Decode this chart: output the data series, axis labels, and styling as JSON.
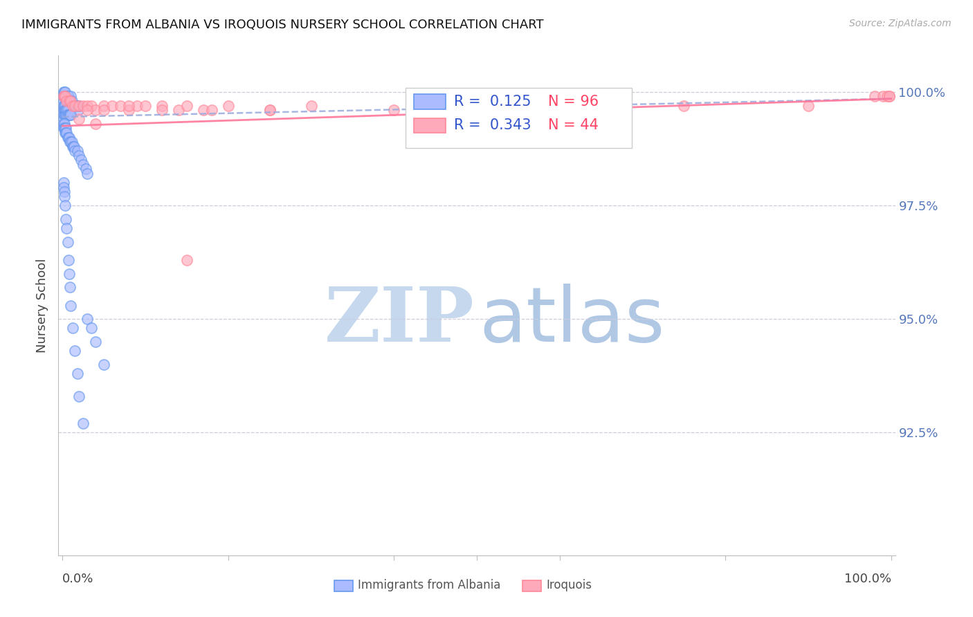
{
  "title": "IMMIGRANTS FROM ALBANIA VS IROQUOIS NURSERY SCHOOL CORRELATION CHART",
  "source": "Source: ZipAtlas.com",
  "ylabel": "Nursery School",
  "yticks": [
    0.925,
    0.95,
    0.975,
    1.0
  ],
  "ytick_labels": [
    "92.5%",
    "95.0%",
    "97.5%",
    "100.0%"
  ],
  "xlim": [
    -0.005,
    1.005
  ],
  "ylim": [
    0.898,
    1.008
  ],
  "watermark_zip_color": "#c5d8ee",
  "watermark_atlas_color": "#b0c8e4",
  "blue_color": "#6699ee",
  "pink_color": "#ff8899",
  "blue_fill_color": "#aabbff",
  "pink_fill_color": "#ffaabb",
  "blue_line_color": "#99aadd",
  "pink_line_color": "#ff7799",
  "blue_scatter_x": [
    0.001,
    0.001,
    0.001,
    0.002,
    0.002,
    0.003,
    0.003,
    0.004,
    0.004,
    0.005,
    0.005,
    0.006,
    0.006,
    0.007,
    0.007,
    0.008,
    0.008,
    0.009,
    0.01,
    0.01,
    0.011,
    0.012,
    0.013,
    0.014,
    0.015,
    0.016,
    0.017,
    0.018,
    0.019,
    0.02,
    0.001,
    0.001,
    0.001,
    0.001,
    0.002,
    0.002,
    0.002,
    0.003,
    0.003,
    0.003,
    0.004,
    0.004,
    0.005,
    0.005,
    0.006,
    0.006,
    0.007,
    0.008,
    0.009,
    0.01,
    0.001,
    0.001,
    0.002,
    0.002,
    0.003,
    0.003,
    0.004,
    0.004,
    0.005,
    0.006,
    0.007,
    0.008,
    0.009,
    0.01,
    0.011,
    0.012,
    0.013,
    0.014,
    0.015,
    0.018,
    0.02,
    0.022,
    0.025,
    0.028,
    0.03,
    0.001,
    0.001,
    0.002,
    0.002,
    0.003,
    0.004,
    0.005,
    0.006,
    0.007,
    0.008,
    0.009,
    0.01,
    0.012,
    0.015,
    0.018,
    0.02,
    0.025,
    0.03,
    0.035,
    0.04,
    0.05
  ],
  "blue_scatter_y": [
    1.0,
    0.999,
    0.998,
    1.0,
    0.999,
    1.0,
    0.999,
    0.999,
    0.998,
    0.999,
    0.998,
    0.999,
    0.998,
    0.999,
    0.998,
    0.998,
    0.997,
    0.998,
    0.999,
    0.998,
    0.998,
    0.997,
    0.997,
    0.997,
    0.997,
    0.997,
    0.997,
    0.997,
    0.996,
    0.997,
    0.997,
    0.996,
    0.995,
    0.994,
    0.997,
    0.996,
    0.995,
    0.997,
    0.996,
    0.995,
    0.996,
    0.995,
    0.996,
    0.995,
    0.996,
    0.995,
    0.995,
    0.995,
    0.995,
    0.995,
    0.993,
    0.992,
    0.993,
    0.992,
    0.992,
    0.991,
    0.992,
    0.991,
    0.991,
    0.99,
    0.99,
    0.99,
    0.989,
    0.989,
    0.989,
    0.988,
    0.988,
    0.988,
    0.987,
    0.987,
    0.986,
    0.985,
    0.984,
    0.983,
    0.982,
    0.98,
    0.979,
    0.978,
    0.977,
    0.975,
    0.972,
    0.97,
    0.967,
    0.963,
    0.96,
    0.957,
    0.953,
    0.948,
    0.943,
    0.938,
    0.933,
    0.927,
    0.95,
    0.948,
    0.945,
    0.94
  ],
  "pink_scatter_x": [
    0.001,
    0.002,
    0.003,
    0.005,
    0.008,
    0.01,
    0.012,
    0.015,
    0.02,
    0.025,
    0.03,
    0.035,
    0.04,
    0.05,
    0.06,
    0.07,
    0.08,
    0.09,
    0.1,
    0.12,
    0.14,
    0.15,
    0.17,
    0.2,
    0.25,
    0.03,
    0.05,
    0.08,
    0.12,
    0.18,
    0.25,
    0.3,
    0.4,
    0.6,
    0.75,
    0.9,
    0.98,
    0.99,
    0.995,
    0.998,
    0.998,
    0.02,
    0.04,
    0.15
  ],
  "pink_scatter_y": [
    0.999,
    0.999,
    0.999,
    0.998,
    0.998,
    0.998,
    0.997,
    0.997,
    0.997,
    0.997,
    0.997,
    0.997,
    0.996,
    0.997,
    0.997,
    0.997,
    0.996,
    0.997,
    0.997,
    0.997,
    0.996,
    0.997,
    0.996,
    0.997,
    0.996,
    0.996,
    0.996,
    0.997,
    0.996,
    0.996,
    0.996,
    0.997,
    0.996,
    0.997,
    0.997,
    0.997,
    0.999,
    0.999,
    0.999,
    0.999,
    0.999,
    0.994,
    0.993,
    0.963
  ],
  "blue_trend_x": [
    0.0,
    1.0
  ],
  "blue_trend_y": [
    0.9945,
    0.9985
  ],
  "pink_trend_x": [
    0.0,
    1.0
  ],
  "pink_trend_y": [
    0.9925,
    0.9985
  ],
  "grid_color": "#ccccdd",
  "tick_color": "#5577bb",
  "bg_color": "#ffffff",
  "legend_R1": "R =  0.125",
  "legend_N1": "N = 96",
  "legend_R2": "R =  0.343",
  "legend_N2": "N = 44"
}
